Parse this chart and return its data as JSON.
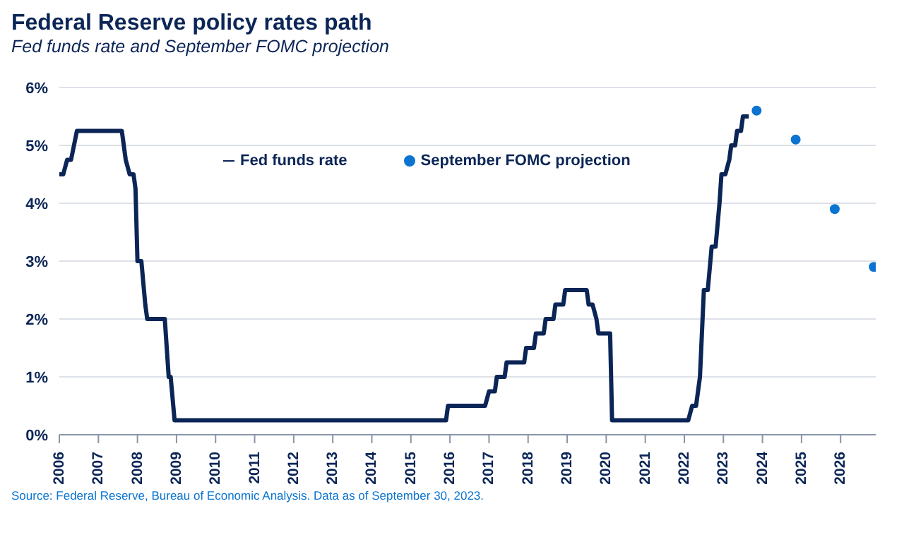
{
  "chart_data": {
    "type": "step",
    "title": "Federal Reserve policy rates path",
    "subtitle": "Fed funds rate and September FOMC projection",
    "annotations": [
      "Source: Federal Reserve, Bureau of Economic Analysis. Data as of September 30, 2023."
    ],
    "series": [
      {
        "name": "Fed funds rate",
        "marker": "none",
        "color": "#0b2556",
        "x": [
          2006.0,
          2006.1,
          2006.2,
          2006.3,
          2006.45,
          2007.6,
          2007.7,
          2007.8,
          2007.9,
          2007.95,
          2008.0,
          2008.1,
          2008.2,
          2008.25,
          2008.7,
          2008.8,
          2008.85,
          2008.95,
          2015.9,
          2015.95,
          2016.9,
          2017.0,
          2017.15,
          2017.2,
          2017.4,
          2017.45,
          2017.9,
          2017.95,
          2018.15,
          2018.2,
          2018.4,
          2018.45,
          2018.65,
          2018.7,
          2018.9,
          2018.95,
          2019.5,
          2019.55,
          2019.65,
          2019.75,
          2019.8,
          2020.1,
          2020.15,
          2022.1,
          2022.2,
          2022.3,
          2022.4,
          2022.5,
          2022.6,
          2022.7,
          2022.8,
          2022.9,
          2022.95,
          2023.05,
          2023.15,
          2023.2,
          2023.3,
          2023.35,
          2023.45,
          2023.5,
          2023.65
        ],
        "values": [
          4.5,
          4.5,
          4.75,
          4.75,
          5.25,
          5.25,
          4.75,
          4.5,
          4.5,
          4.25,
          3.0,
          3.0,
          2.25,
          2.0,
          2.0,
          1.0,
          1.0,
          0.25,
          0.25,
          0.5,
          0.5,
          0.75,
          0.75,
          1.0,
          1.0,
          1.25,
          1.25,
          1.5,
          1.5,
          1.75,
          1.75,
          2.0,
          2.0,
          2.25,
          2.25,
          2.5,
          2.5,
          2.25,
          2.25,
          2.0,
          1.75,
          1.75,
          0.25,
          0.25,
          0.5,
          0.5,
          1.0,
          2.5,
          2.5,
          3.25,
          3.25,
          4.0,
          4.5,
          4.5,
          4.75,
          5.0,
          5.0,
          5.25,
          5.25,
          5.5,
          5.5
        ]
      },
      {
        "name": "September FOMC projection",
        "type": "scatter",
        "marker": "circle",
        "color": "#0a74d0",
        "x": [
          2023.85,
          2024.85,
          2025.85,
          2026.85
        ],
        "values": [
          5.6,
          5.1,
          3.9,
          2.9
        ]
      }
    ],
    "xlim": [
      2006,
      2026.9
    ],
    "xticks": [
      2006,
      2007,
      2008,
      2009,
      2010,
      2011,
      2012,
      2013,
      2014,
      2015,
      2016,
      2017,
      2018,
      2019,
      2020,
      2021,
      2022,
      2023,
      2024,
      2025,
      2026
    ],
    "ylim": [
      0,
      6
    ],
    "yticks": [
      {
        "value": 0,
        "label": "0%"
      },
      {
        "value": 1,
        "label": "1%"
      },
      {
        "value": 2,
        "label": "2%"
      },
      {
        "value": 3,
        "label": "3%"
      },
      {
        "value": 4,
        "label": "4%"
      },
      {
        "value": 5,
        "label": "5%"
      },
      {
        "value": 6,
        "label": "6%"
      }
    ],
    "grid": "y",
    "legend": "top",
    "line_style": "solid"
  }
}
